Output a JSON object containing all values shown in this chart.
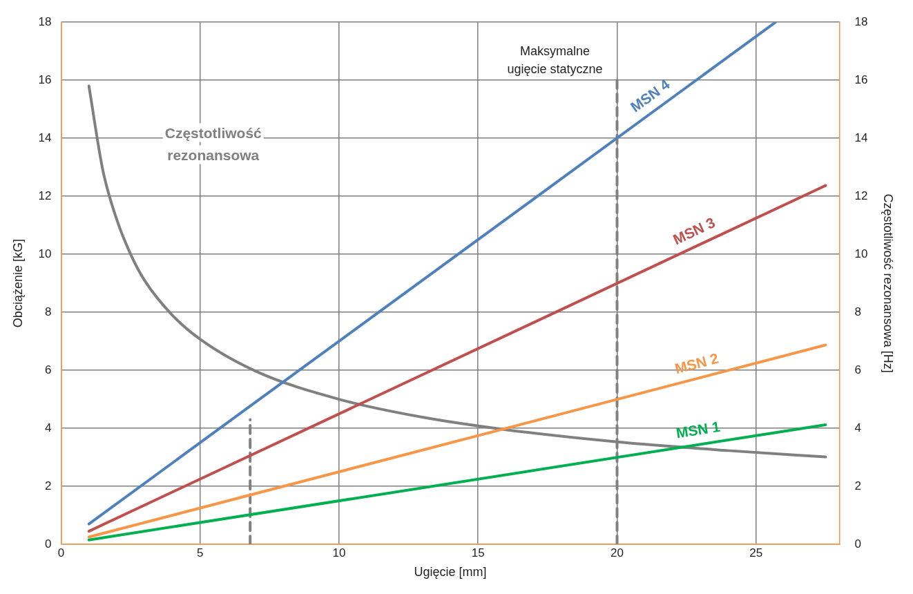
{
  "chart_data": {
    "type": "line",
    "xlabel": "Ugięcie [mm]",
    "ylabel": "Obciążenie [kG]",
    "y2label": "Częstotliwość rezonansowa [Hz]",
    "xlim": [
      0,
      28
    ],
    "xticks": [
      0,
      5,
      10,
      15,
      20,
      25
    ],
    "ylim": [
      0,
      18
    ],
    "yticks": [
      0,
      2,
      4,
      6,
      8,
      10,
      12,
      14,
      16,
      18
    ],
    "y2lim": [
      0,
      18
    ],
    "y2ticks": [
      0,
      2,
      4,
      6,
      8,
      10,
      12,
      14,
      16,
      18
    ],
    "grid": true,
    "legend": false,
    "marker": "none",
    "series": [
      {
        "name": "MSN 1",
        "color": "#00b050",
        "x": [
          1,
          27.5
        ],
        "values": [
          0.15,
          4.12
        ]
      },
      {
        "name": "MSN 2",
        "color": "#f79646",
        "x": [
          1,
          27.5
        ],
        "values": [
          0.25,
          6.87
        ]
      },
      {
        "name": "MSN 3",
        "color": "#c0504d",
        "x": [
          1,
          27.5
        ],
        "values": [
          0.45,
          12.37
        ]
      },
      {
        "name": "MSN 4",
        "color": "#4f81bd",
        "x": [
          1,
          25.7
        ],
        "values": [
          0.7,
          18
        ]
      },
      {
        "name": "Częstotliwość rezonansowa",
        "color": "#808080",
        "axis": "y2",
        "x": [
          1,
          1.5,
          2,
          2.5,
          3,
          4,
          5,
          7,
          10,
          13,
          16,
          20,
          24,
          27.5
        ],
        "values": [
          15.8,
          12.9,
          11.2,
          10,
          9.1,
          7.9,
          7.07,
          5.97,
          5,
          4.38,
          3.95,
          3.53,
          3.23,
          3.01
        ]
      },
      {
        "color": "#808080",
        "line_style": "dashed",
        "x": [
          6.8,
          6.8
        ],
        "values": [
          0,
          4.3
        ]
      },
      {
        "color": "#808080",
        "line_style": "dashed",
        "x": [
          20,
          20
        ],
        "values": [
          0,
          16
        ]
      }
    ],
    "annotations": [
      {
        "text": "Maksymalne ugięcie statyczne",
        "x": 20,
        "y": 16
      }
    ]
  }
}
